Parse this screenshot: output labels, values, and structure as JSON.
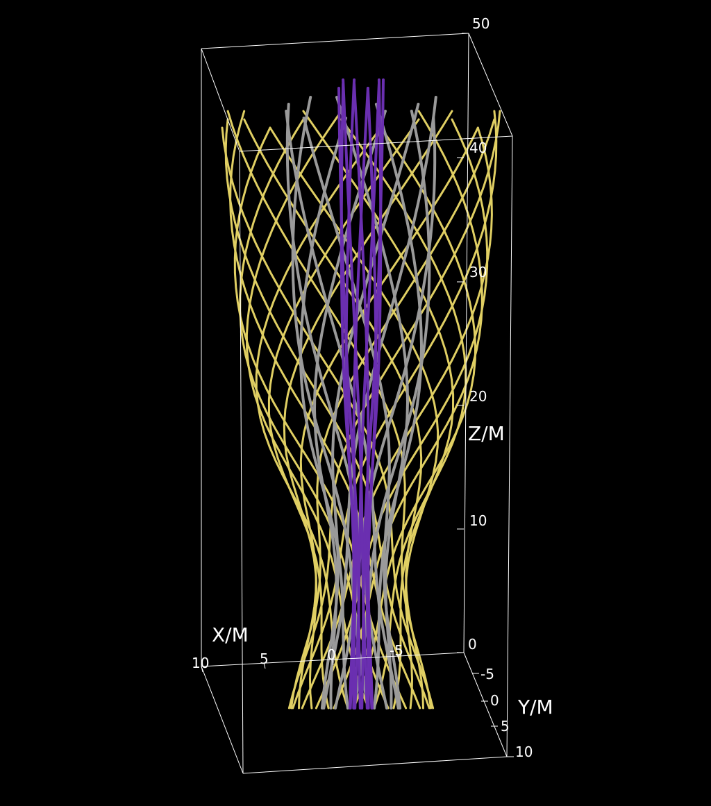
{
  "axes": {
    "x": {
      "title": "X/M",
      "ticks": [
        "10",
        "5",
        "0",
        "-5"
      ]
    },
    "y": {
      "title": "Y/M",
      "ticks": [
        "-5",
        "0",
        "5",
        "10"
      ]
    },
    "z": {
      "title": "Z/M",
      "ticks": [
        "0",
        "10",
        "20",
        "30",
        "40",
        "50"
      ]
    }
  },
  "colors": {
    "background": "#000000",
    "box": "#ffffff",
    "outer_lines": "#e0cf63",
    "middle_lines": "#9a9a9a",
    "inner_lines": "#6a2fb0"
  }
}
